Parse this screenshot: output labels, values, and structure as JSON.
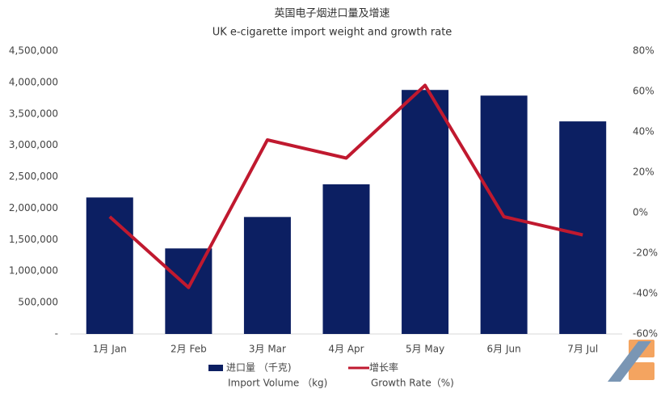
{
  "chart_data": {
    "type": "bar_line",
    "title": "英国电子烟进口量及增速",
    "subtitle": "UK e-cigarette import weight and growth rate",
    "categories": [
      "1月 Jan",
      "2月 Feb",
      "3月 Mar",
      "4月 Apr",
      "5月 May",
      "6月 Jun",
      "7月 Jul"
    ],
    "series": [
      {
        "name": "进口量 （千克)",
        "name_en": "Import Volume （kg)",
        "type": "bar",
        "color": "#0c1f62",
        "values": [
          2170000,
          1360000,
          1860000,
          2380000,
          3880000,
          3790000,
          3380000
        ]
      },
      {
        "name": "增长率",
        "name_en": "Growth Rate（%)",
        "type": "line",
        "axis": "y2",
        "color": "#c0192f",
        "values": [
          -2,
          -37,
          36,
          27,
          63,
          -2,
          -11
        ]
      }
    ],
    "ylim": [
      0,
      4500000
    ],
    "yticks": [
      {
        "value": 0,
        "label": "-"
      },
      {
        "value": 500000,
        "label": "500,000"
      },
      {
        "value": 1000000,
        "label": "1,000,000"
      },
      {
        "value": 1500000,
        "label": "1,500,000"
      },
      {
        "value": 2000000,
        "label": "2,000,000"
      },
      {
        "value": 2500000,
        "label": "2,500,000"
      },
      {
        "value": 3000000,
        "label": "3,000,000"
      },
      {
        "value": 3500000,
        "label": "3,500,000"
      },
      {
        "value": 4000000,
        "label": "4,000,000"
      },
      {
        "value": 4500000,
        "label": "4,500,000"
      }
    ],
    "y2lim": [
      -60,
      80
    ],
    "y2ticks": [
      {
        "value": -60,
        "label": "-60%"
      },
      {
        "value": -40,
        "label": "-40%"
      },
      {
        "value": -20,
        "label": "-20%"
      },
      {
        "value": 0,
        "label": "0%"
      },
      {
        "value": 20,
        "label": "20%"
      },
      {
        "value": 40,
        "label": "40%"
      },
      {
        "value": 60,
        "label": "60%"
      },
      {
        "value": 80,
        "label": "80%"
      }
    ]
  }
}
